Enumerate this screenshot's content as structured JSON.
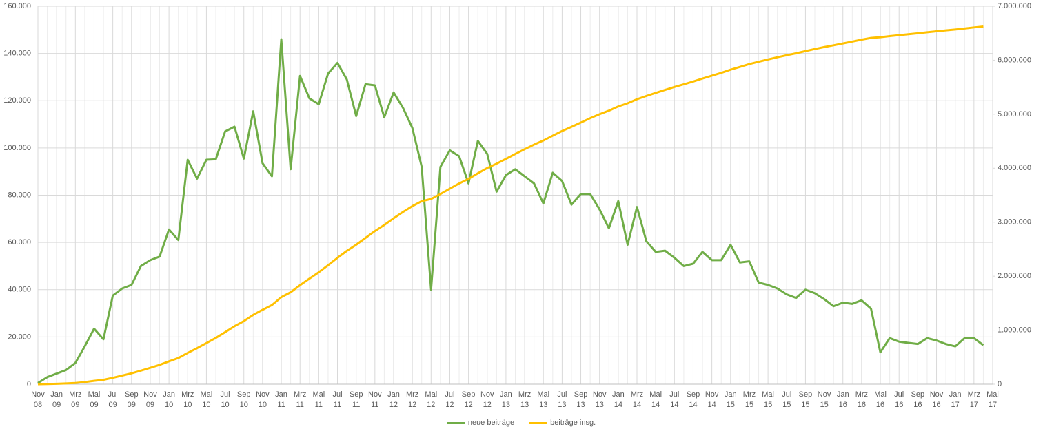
{
  "chart_data": {
    "type": "line",
    "categories": [
      "Nov 08",
      null,
      "Jan 09",
      null,
      "Mrz 09",
      null,
      "Mai 09",
      null,
      "Jul 09",
      null,
      "Sep 09",
      null,
      "Nov 09",
      null,
      "Jan 10",
      null,
      "Mrz 10",
      null,
      "Mai 10",
      null,
      "Jul 10",
      null,
      "Sep 10",
      null,
      "Nov 10",
      null,
      "Jan 11",
      null,
      "Mrz 11",
      null,
      "Mai 11",
      null,
      "Jul 11",
      null,
      "Sep 11",
      null,
      "Nov 11",
      null,
      "Jan 12",
      null,
      "Mrz 12",
      null,
      "Mai 12",
      null,
      "Jul 12",
      null,
      "Sep 12",
      null,
      "Nov 12",
      null,
      "Jan 13",
      null,
      "Mrz 13",
      null,
      "Mai 13",
      null,
      "Jul 13",
      null,
      "Sep 13",
      null,
      "Nov 13",
      null,
      "Jan 14",
      null,
      "Mrz 14",
      null,
      "Mai 14",
      null,
      "Jul 14",
      null,
      "Sep 14",
      null,
      "Nov 14",
      null,
      "Jan 15",
      null,
      "Mrz 15",
      null,
      "Mai 15",
      null,
      "Jul 15",
      null,
      "Sep 15",
      null,
      "Nov 15",
      null,
      "Jan 16",
      null,
      "Mrz 16",
      null,
      "Mai 16",
      null,
      "Jul 16",
      null,
      "Sep 16",
      null,
      "Nov 16",
      null,
      "Jan 17",
      null,
      "Mrz 17",
      null,
      "Mai 17"
    ],
    "series": [
      {
        "name": "neue beiträge",
        "color": "#70ad47",
        "axis": "y",
        "values": [
          500,
          3000,
          4500,
          6000,
          9000,
          16000,
          23500,
          19000,
          37500,
          40500,
          42000,
          50000,
          52500,
          54000,
          65500,
          61000,
          95000,
          87000,
          95000,
          95200,
          107000,
          109000,
          95500,
          115500,
          93500,
          88000,
          146000,
          91000,
          130500,
          121000,
          118500,
          131500,
          136000,
          129000,
          113500,
          127000,
          126500,
          113000,
          123500,
          117000,
          108500,
          92000,
          40000,
          92000,
          99000,
          96500,
          85000,
          103000,
          97500,
          81500,
          88500,
          91000,
          88000,
          85000,
          76500,
          89500,
          86000,
          76000,
          80500,
          80500,
          74000,
          66000,
          77500,
          59000,
          75000,
          60500,
          56000,
          56500,
          53500,
          50000,
          51000,
          56000,
          52500,
          52500,
          59000,
          51500,
          52000,
          43000,
          42000,
          40500,
          38000,
          36500,
          40000,
          38500,
          36000,
          33000,
          34500,
          34000,
          35500,
          32000,
          13500,
          19500,
          18000,
          17500,
          17000,
          19500,
          18500,
          17000,
          16000,
          19500,
          19500,
          16500,
          null
        ]
      },
      {
        "name": "beiträge insg.",
        "color": "#ffc000",
        "axis": "y2",
        "values": [
          500,
          3500,
          8000,
          14000,
          23000,
          39000,
          62500,
          81500,
          119000,
          159500,
          201500,
          251500,
          304000,
          358000,
          423500,
          484500,
          579500,
          666500,
          761500,
          856700,
          963700,
          1072700,
          1168200,
          1283700,
          1377200,
          1465200,
          1611200,
          1702200,
          1832700,
          1953700,
          2072200,
          2203700,
          2339700,
          2468700,
          2582200,
          2709200,
          2835700,
          2948700,
          3072200,
          3189200,
          3297700,
          3389700,
          3429700,
          3521700,
          3620700,
          3717200,
          3802200,
          3905200,
          4002700,
          4084200,
          4172700,
          4263700,
          4351700,
          4436700,
          4513200,
          4602700,
          4688700,
          4764700,
          4845200,
          4925700,
          4999700,
          5065700,
          5143200,
          5202200,
          5277200,
          5337700,
          5393700,
          5450200,
          5503700,
          5553700,
          5604700,
          5660700,
          5713200,
          5765700,
          5824700,
          5876200,
          5928200,
          5971200,
          6013200,
          6053700,
          6091700,
          6128200,
          6168200,
          6206700,
          6242700,
          6275700,
          6310200,
          6344200,
          6379700,
          6411700,
          6425200,
          6444700,
          6462700,
          6480200,
          6497200,
          6516700,
          6535200,
          6552200,
          6568200,
          6587700,
          6607200,
          6623700,
          null
        ]
      }
    ],
    "ylim": [
      0,
      160000
    ],
    "yticks": [
      0,
      {
        "value": 20000,
        "label": "20.000"
      },
      {
        "value": 40000,
        "label": "40.000"
      },
      {
        "value": 60000,
        "label": "60.000"
      },
      {
        "value": 80000,
        "label": "80.000"
      },
      {
        "value": 100000,
        "label": "100.000"
      },
      {
        "value": 120000,
        "label": "120.000"
      },
      {
        "value": 140000,
        "label": "140.000"
      },
      {
        "value": 160000,
        "label": "160.000"
      }
    ],
    "y2lim": [
      0,
      7000000
    ],
    "y2ticks": [
      0,
      {
        "value": 1000000,
        "label": "1.000.000"
      },
      {
        "value": 2000000,
        "label": "2.000.000"
      },
      {
        "value": 3000000,
        "label": "3.000.000"
      },
      {
        "value": 4000000,
        "label": "4.000.000"
      },
      {
        "value": 5000000,
        "label": "5.000.000"
      },
      {
        "value": 6000000,
        "label": "6.000.000"
      },
      {
        "value": 7000000,
        "label": "7.000.000"
      }
    ],
    "grid": true,
    "legend": "bottom"
  }
}
